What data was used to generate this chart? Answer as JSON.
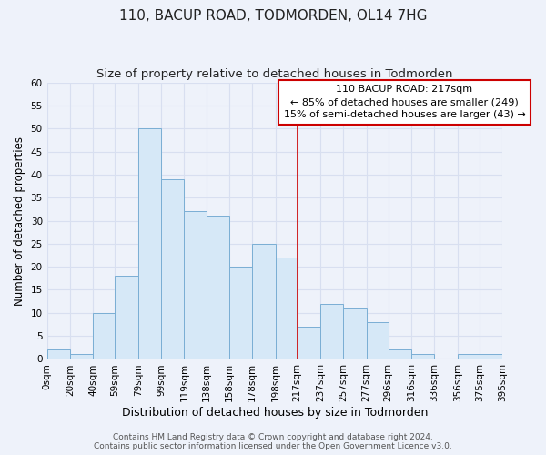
{
  "title": "110, BACUP ROAD, TODMORDEN, OL14 7HG",
  "subtitle": "Size of property relative to detached houses in Todmorden",
  "xlabel": "Distribution of detached houses by size in Todmorden",
  "ylabel": "Number of detached properties",
  "bar_edges": [
    0,
    20,
    40,
    59,
    79,
    99,
    119,
    138,
    158,
    178,
    198,
    217,
    237,
    257,
    277,
    296,
    316,
    336,
    356,
    375,
    395
  ],
  "bar_heights": [
    2,
    1,
    10,
    18,
    50,
    39,
    32,
    31,
    20,
    25,
    22,
    7,
    12,
    11,
    8,
    2,
    1,
    0,
    1,
    1
  ],
  "bar_color": "#d6e8f7",
  "bar_edgecolor": "#7aaed4",
  "vline_x": 217,
  "vline_color": "#cc0000",
  "ylim": [
    0,
    60
  ],
  "yticks": [
    0,
    5,
    10,
    15,
    20,
    25,
    30,
    35,
    40,
    45,
    50,
    55,
    60
  ],
  "xlim": [
    0,
    395
  ],
  "xtick_positions": [
    0,
    20,
    40,
    59,
    79,
    99,
    119,
    138,
    158,
    178,
    198,
    217,
    237,
    257,
    277,
    296,
    316,
    336,
    356,
    375,
    395
  ],
  "xtick_labels": [
    "0sqm",
    "20sqm",
    "40sqm",
    "59sqm",
    "79sqm",
    "99sqm",
    "119sqm",
    "138sqm",
    "158sqm",
    "178sqm",
    "198sqm",
    "217sqm",
    "237sqm",
    "257sqm",
    "277sqm",
    "296sqm",
    "316sqm",
    "336sqm",
    "356sqm",
    "375sqm",
    "395sqm"
  ],
  "annotation_title": "110 BACUP ROAD: 217sqm",
  "annotation_line1": "← 85% of detached houses are smaller (249)",
  "annotation_line2": "15% of semi-detached houses are larger (43) →",
  "footer_line1": "Contains HM Land Registry data © Crown copyright and database right 2024.",
  "footer_line2": "Contains public sector information licensed under the Open Government Licence v3.0.",
  "background_color": "#eef2fa",
  "grid_color": "#d8dff0",
  "title_fontsize": 11,
  "subtitle_fontsize": 9.5,
  "xlabel_fontsize": 9,
  "ylabel_fontsize": 8.5,
  "tick_fontsize": 7.5,
  "annotation_fontsize": 8,
  "footer_fontsize": 6.5
}
